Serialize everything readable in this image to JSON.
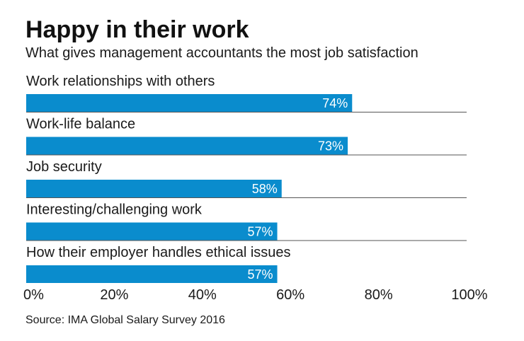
{
  "header": {
    "title": "Happy in their work",
    "subtitle": "What gives management accountants the most job satisfaction"
  },
  "footer": {
    "source": "Source: IMA Global Salary Survey 2016"
  },
  "colors": {
    "bar": "#0a8ccd",
    "separator": "#555555",
    "text": "#1a1a1a",
    "value_text": "#ffffff"
  },
  "chart_data": {
    "type": "bar",
    "orientation": "horizontal",
    "title": "Happy in their work",
    "subtitle": "What gives management accountants the most job satisfaction",
    "categories": [
      "Work relationships with others",
      "Work-life balance",
      "Job security",
      "Interesting/challenging work",
      "How their employer handles ethical issues"
    ],
    "values": [
      74,
      73,
      58,
      57,
      57
    ],
    "value_labels": [
      "74%",
      "73%",
      "58%",
      "57%",
      "57%"
    ],
    "xlim": [
      0,
      100
    ],
    "xticks": [
      0,
      20,
      40,
      60,
      80,
      100
    ],
    "xtick_labels": [
      "0%",
      "20%",
      "40%",
      "60%",
      "80%",
      "100%"
    ],
    "xlabel": "",
    "ylabel": "",
    "grid": false,
    "legend": "none",
    "source": "Source: IMA Global Salary Survey 2016"
  }
}
